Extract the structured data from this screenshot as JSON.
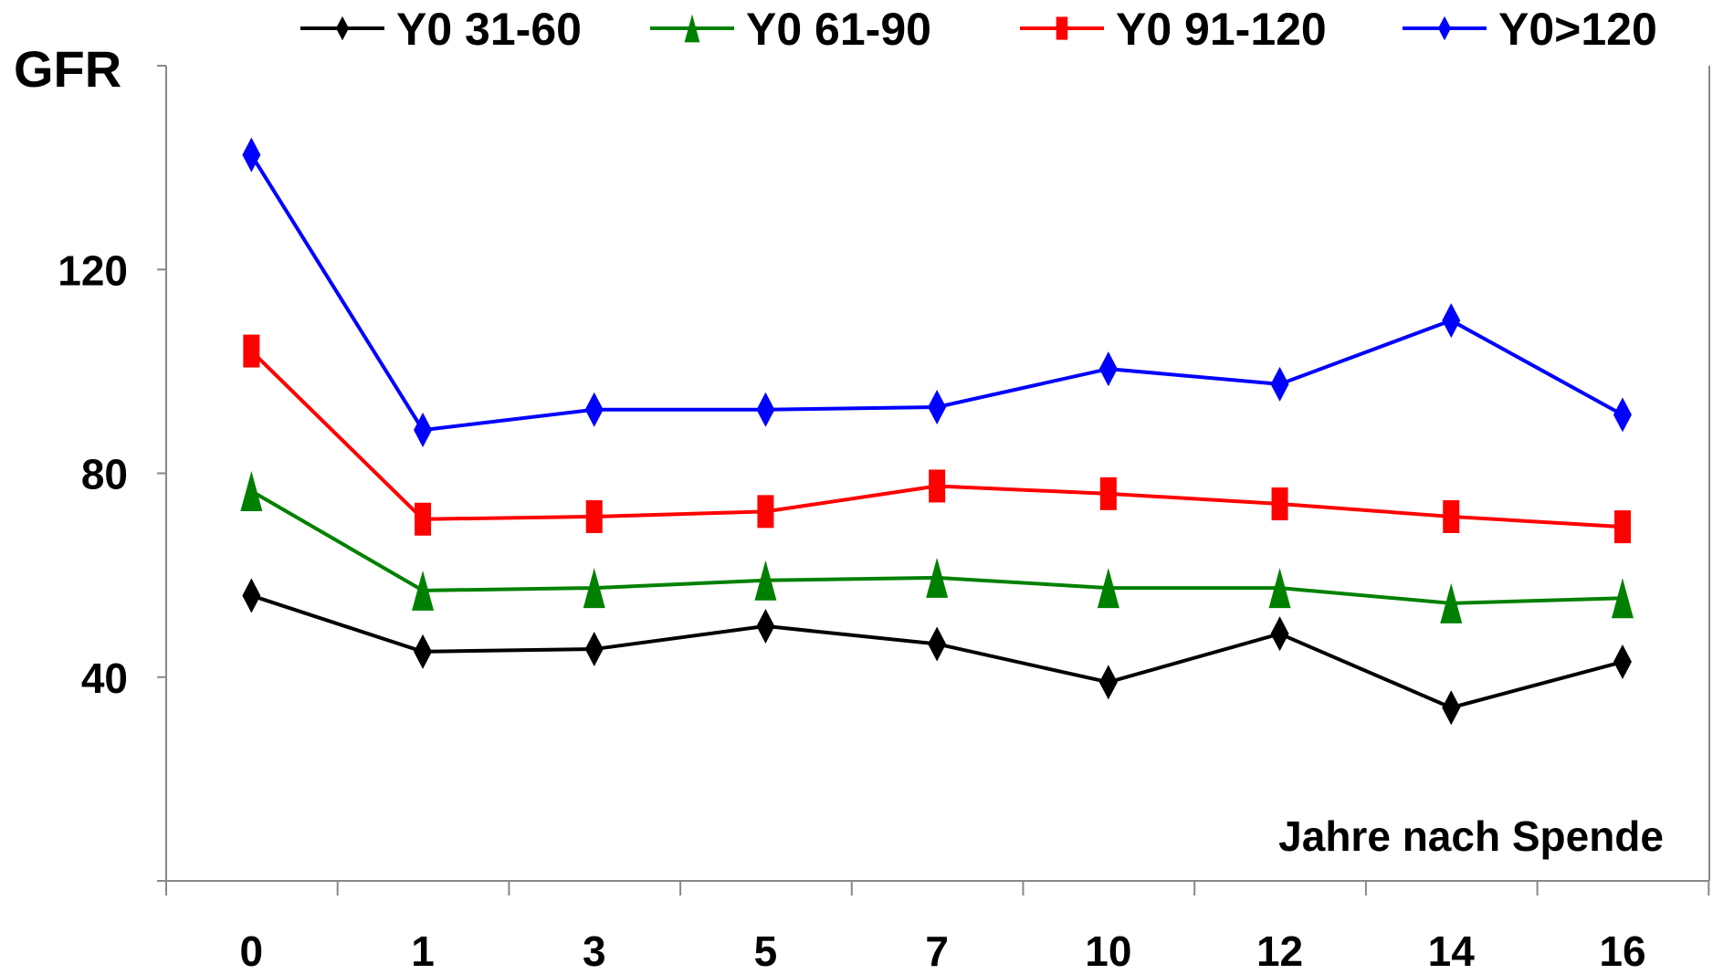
{
  "chart_data": {
    "type": "line",
    "title": "",
    "ylabel": "GFR",
    "xlabel": "Jahre nach Spende",
    "categories": [
      "0",
      "1",
      "3",
      "5",
      "7",
      "10",
      "12",
      "14",
      "16"
    ],
    "ylim": [
      0,
      160
    ],
    "yticks": [
      40,
      80,
      120
    ],
    "grid": false,
    "legend_position": "top",
    "series": [
      {
        "name": "Y0 31-60",
        "color": "#000000",
        "marker": "diamond",
        "values": [
          56,
          45,
          45.5,
          50,
          46.5,
          39,
          48.5,
          34,
          43
        ]
      },
      {
        "name": "Y0 61-90",
        "color": "#008000",
        "marker": "triangle",
        "values": [
          76.5,
          57,
          57.5,
          59,
          59.5,
          57.5,
          57.5,
          54.5,
          55.5
        ]
      },
      {
        "name": "Y0 91-120",
        "color": "#ff0000",
        "marker": "square",
        "values": [
          104,
          71,
          71.5,
          72.5,
          77.5,
          76,
          74,
          71.5,
          69.5
        ]
      },
      {
        "name": "Y0>120",
        "color": "#0000ff",
        "marker": "diamond",
        "values": [
          142.5,
          88.5,
          92.5,
          92.5,
          93,
          100.5,
          97.5,
          110,
          91.5
        ]
      }
    ]
  }
}
